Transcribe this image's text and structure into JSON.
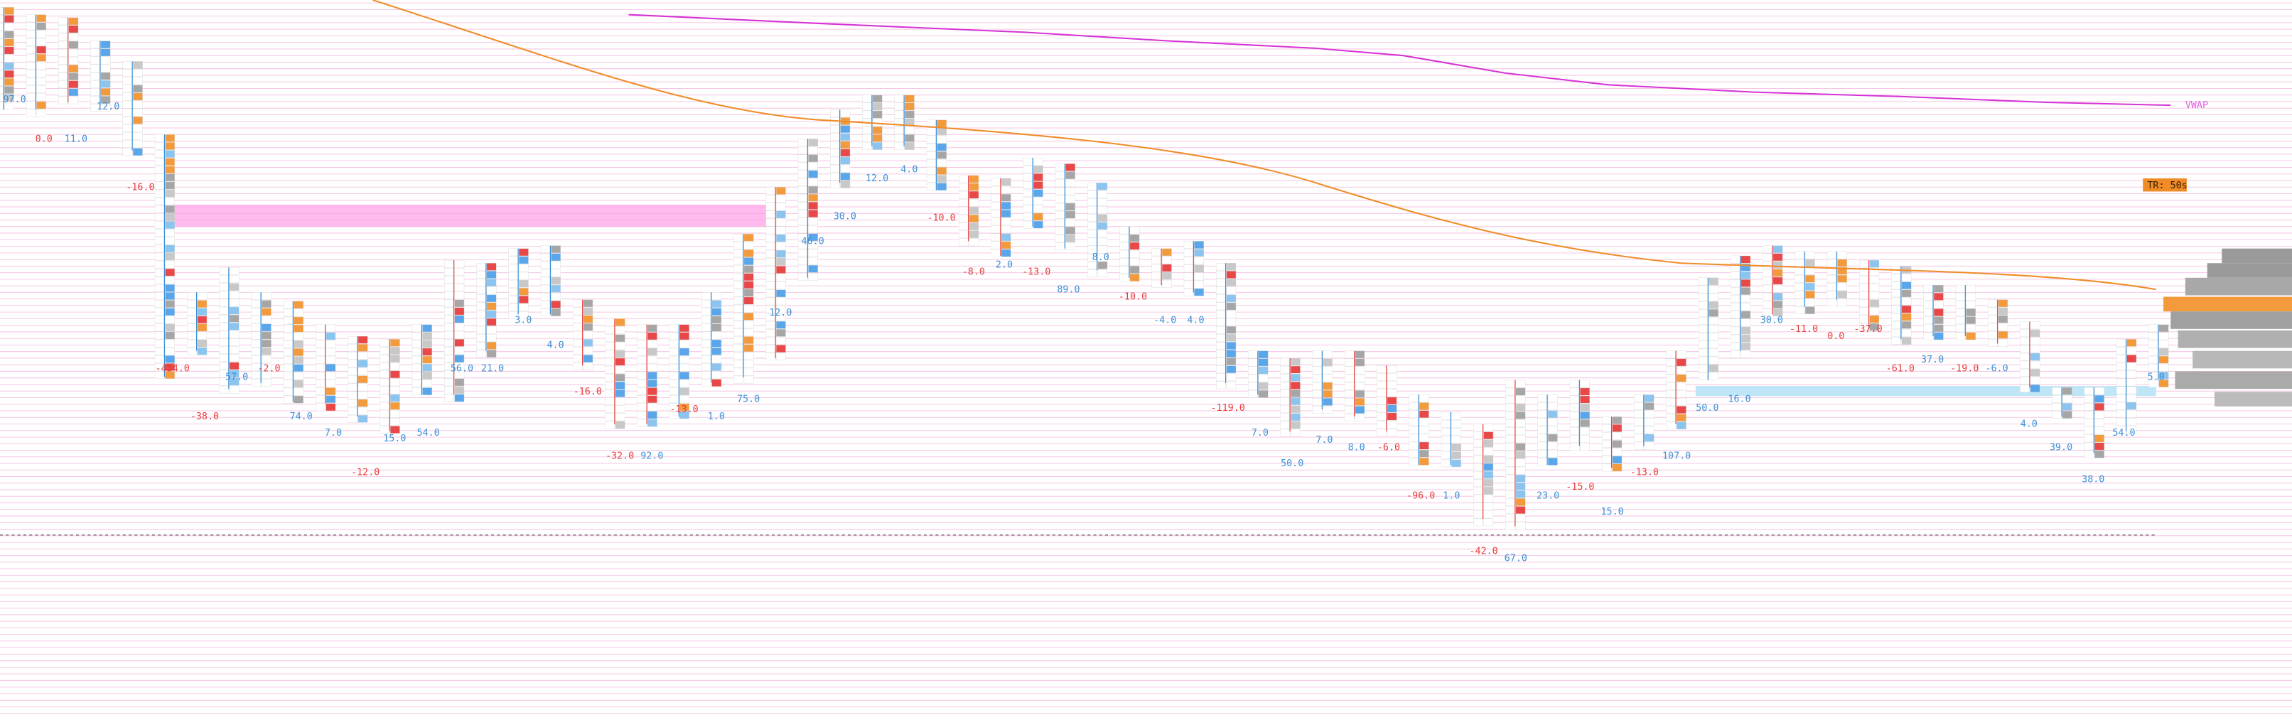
{
  "vwap_label": "VWAP",
  "timer_label": "TR: 50s",
  "annotations": [
    {
      "text": "97.0",
      "color": "#3c8fd8"
    },
    {
      "text": "0.0",
      "color": "#e83c3c"
    },
    {
      "text": "11.0",
      "color": "#3c8fd8"
    },
    {
      "text": "12.0",
      "color": "#3c8fd8"
    },
    {
      "text": "-16.0",
      "color": "#e83c3c"
    },
    {
      "text": "-454.0",
      "color": "#e83c3c"
    },
    {
      "text": "57.0",
      "color": "#3c8fd8"
    },
    {
      "text": "-2.0",
      "color": "#e83c3c"
    },
    {
      "text": "74.0",
      "color": "#3c8fd8"
    },
    {
      "text": "-38.0",
      "color": "#e83c3c"
    },
    {
      "text": "7.0",
      "color": "#3c8fd8"
    },
    {
      "text": "15.0",
      "color": "#3c8fd8"
    },
    {
      "text": "54.0",
      "color": "#3c8fd8"
    },
    {
      "text": "-12.0",
      "color": "#e83c3c"
    },
    {
      "text": "56.0",
      "color": "#3c8fd8"
    },
    {
      "text": "21.0",
      "color": "#3c8fd8"
    },
    {
      "text": "3.0",
      "color": "#3c8fd8"
    },
    {
      "text": "4.0",
      "color": "#3c8fd8"
    },
    {
      "text": "-16.0",
      "color": "#e83c3c"
    },
    {
      "text": "-13.0",
      "color": "#e83c3c"
    },
    {
      "text": "-32.0",
      "color": "#e83c3c"
    },
    {
      "text": "92.0",
      "color": "#3c8fd8"
    },
    {
      "text": "1.0",
      "color": "#3c8fd8"
    },
    {
      "text": "75.0",
      "color": "#3c8fd8"
    },
    {
      "text": "12.0",
      "color": "#3c8fd8"
    },
    {
      "text": "46.0",
      "color": "#3c8fd8"
    },
    {
      "text": "30.0",
      "color": "#3c8fd8"
    },
    {
      "text": "12.0",
      "color": "#3c8fd8"
    },
    {
      "text": "4.0",
      "color": "#3c8fd8"
    },
    {
      "text": "-10.0",
      "color": "#e83c3c"
    },
    {
      "text": "-8.0",
      "color": "#e83c3c"
    },
    {
      "text": "2.0",
      "color": "#3c8fd8"
    },
    {
      "text": "-13.0",
      "color": "#e83c3c"
    },
    {
      "text": "89.0",
      "color": "#3c8fd8"
    },
    {
      "text": "8.0",
      "color": "#3c8fd8"
    },
    {
      "text": "-10.0",
      "color": "#e83c3c"
    },
    {
      "text": "-4.0",
      "color": "#3c8fd8"
    },
    {
      "text": "4.0",
      "color": "#3c8fd8"
    },
    {
      "text": "-119.0",
      "color": "#e83c3c"
    },
    {
      "text": "7.0",
      "color": "#3c8fd8"
    },
    {
      "text": "50.0",
      "color": "#3c8fd8"
    },
    {
      "text": "7.0",
      "color": "#3c8fd8"
    },
    {
      "text": "8.0",
      "color": "#3c8fd8"
    },
    {
      "text": "-6.0",
      "color": "#e83c3c"
    },
    {
      "text": "-96.0",
      "color": "#e83c3c"
    },
    {
      "text": "1.0",
      "color": "#3c8fd8"
    },
    {
      "text": "-42.0",
      "color": "#e83c3c"
    },
    {
      "text": "67.0",
      "color": "#3c8fd8"
    },
    {
      "text": "23.0",
      "color": "#3c8fd8"
    },
    {
      "text": "-15.0",
      "color": "#e83c3c"
    },
    {
      "text": "15.0",
      "color": "#3c8fd8"
    },
    {
      "text": "-13.0",
      "color": "#e83c3c"
    },
    {
      "text": "107.0",
      "color": "#3c8fd8"
    },
    {
      "text": "50.0",
      "color": "#3c8fd8"
    },
    {
      "text": "16.0",
      "color": "#3c8fd8"
    },
    {
      "text": "30.0",
      "color": "#3c8fd8"
    },
    {
      "text": "-11.0",
      "color": "#e83c3c"
    },
    {
      "text": "0.0",
      "color": "#e83c3c"
    },
    {
      "text": "-37.0",
      "color": "#e83c3c"
    },
    {
      "text": "-61.0",
      "color": "#e83c3c"
    },
    {
      "text": "37.0",
      "color": "#3c8fd8"
    },
    {
      "text": "-19.0",
      "color": "#e83c3c"
    },
    {
      "text": "-6.0",
      "color": "#3c8fd8"
    },
    {
      "text": "4.0",
      "color": "#3c8fd8"
    },
    {
      "text": "39.0",
      "color": "#3c8fd8"
    },
    {
      "text": "38.0",
      "color": "#3c8fd8"
    },
    {
      "text": "5.0",
      "color": "#3c8fd8"
    },
    {
      "text": "54.0",
      "color": "#3c8fd8"
    }
  ]
}
